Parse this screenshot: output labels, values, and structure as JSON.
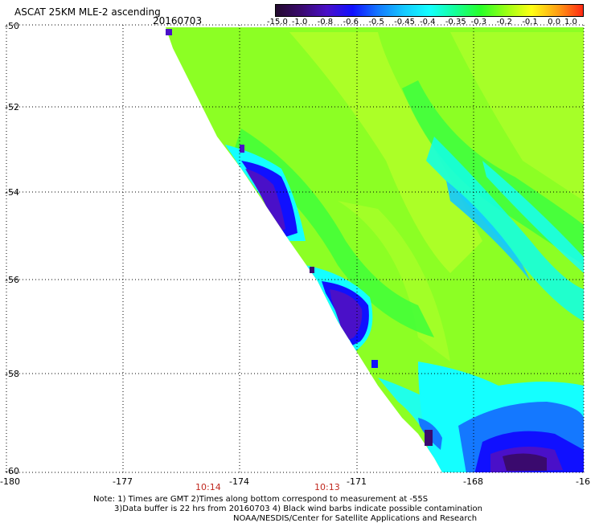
{
  "header": {
    "title": "ASCAT 25KM MLE-2 ascending",
    "date": "20160703"
  },
  "colorbar": {
    "labels": [
      "-15.0",
      "-1.0",
      "-0.8",
      "-0.6",
      "-0.5",
      "-0.45",
      "-0.4",
      "-0.35",
      "-0.3",
      "-0.2",
      "-0.1",
      "0.0",
      "1.0"
    ],
    "colors": [
      "#230a2e",
      "#3a0a6e",
      "#4a10c8",
      "#1010ff",
      "#1478ff",
      "#14c8ff",
      "#14ffff",
      "#14ff9a",
      "#28ff28",
      "#9aff14",
      "#ffff14",
      "#ffa014",
      "#ff2814"
    ]
  },
  "map": {
    "lat_labels": [
      "-50",
      "-52",
      "-54",
      "-56",
      "-58",
      "-60"
    ],
    "lon_labels": [
      "-180",
      "-177",
      "-174",
      "-171",
      "-168",
      "-16"
    ],
    "time_labels": [
      "10:14",
      "10:13"
    ]
  },
  "footer": {
    "line1": "Note: 1) Times are GMT 2)Times along bottom correspond to measurement at -55S",
    "line2": "3)Data buffer is 22 hrs from 20160703 4) Black wind barbs indicate possible contamination",
    "line3": "NOAA/NESDIS/Center for Satellite Applications and Research"
  }
}
